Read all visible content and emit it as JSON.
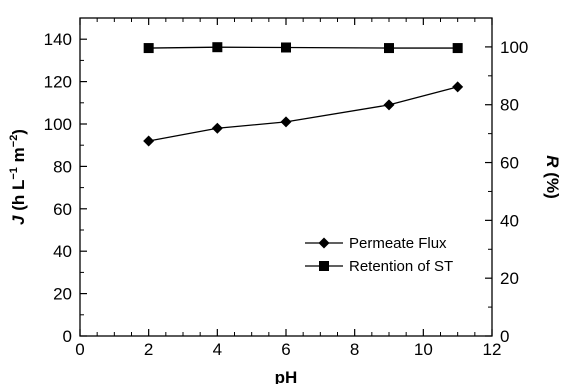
{
  "chart_data": {
    "type": "line",
    "x": [
      2,
      4,
      6,
      9,
      11
    ],
    "xlabel": "pH",
    "xlim": [
      0,
      12
    ],
    "xticks": [
      "0",
      "2",
      "4",
      "6",
      "8",
      "10",
      "12"
    ],
    "ylabel_left": {
      "prefix": "J",
      "rest": " (h L",
      "sup1": "−1",
      "mid": " m",
      "sup2": "−2",
      "end": ")"
    },
    "ylim_left": [
      0,
      150
    ],
    "yticks_left": [
      "0",
      "20",
      "40",
      "60",
      "80",
      "100",
      "120",
      "140"
    ],
    "ylabel_right": {
      "prefix": "R",
      "rest": " (%)"
    },
    "ylim_right": [
      0,
      110
    ],
    "yticks_right": [
      "0",
      "20",
      "40",
      "60",
      "80",
      "100"
    ],
    "series": [
      {
        "name": "Permeate Flux",
        "axis": "left",
        "marker": "diamond",
        "values": [
          92,
          98,
          101,
          109,
          117.5
        ]
      },
      {
        "name": "Retention of ST",
        "axis": "right",
        "marker": "square",
        "values": [
          99.6,
          99.9,
          99.8,
          99.6,
          99.6
        ]
      }
    ],
    "legend_position": "lower-right",
    "grid": false,
    "color": "#000000"
  }
}
